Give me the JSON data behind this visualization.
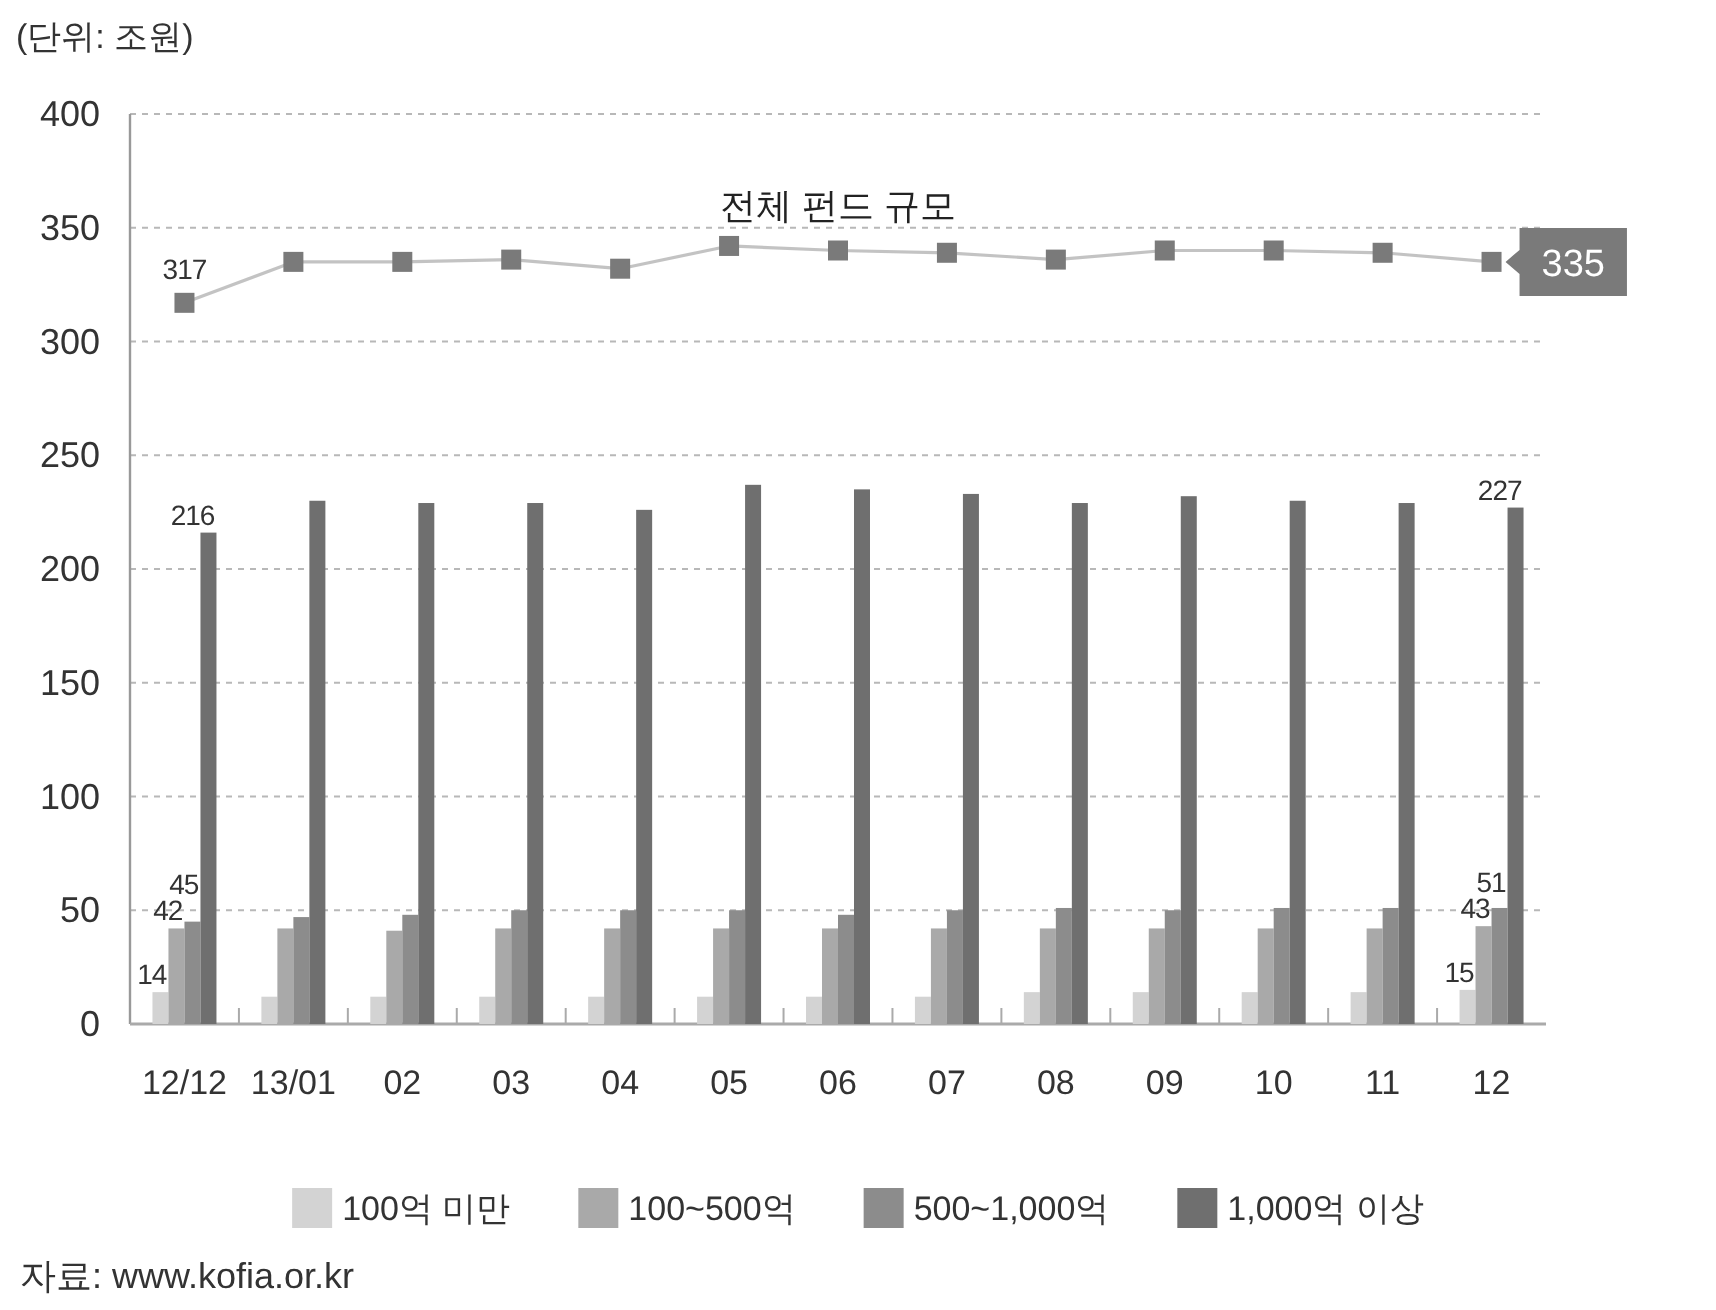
{
  "chart_data": {
    "type": "bar",
    "ylabel": "(단위: 조원)",
    "categories": [
      "12/12",
      "13/01",
      "02",
      "03",
      "04",
      "05",
      "06",
      "07",
      "08",
      "09",
      "10",
      "11",
      "12"
    ],
    "series": [
      {
        "name": "100억 미만",
        "color": "#d3d3d3",
        "values": [
          14,
          12,
          12,
          12,
          12,
          12,
          12,
          12,
          14,
          14,
          14,
          14,
          15
        ],
        "value_labels": [
          "14",
          null,
          null,
          null,
          null,
          null,
          null,
          null,
          null,
          null,
          null,
          null,
          "15"
        ]
      },
      {
        "name": "100~500억",
        "color": "#a9a9a9",
        "values": [
          42,
          42,
          41,
          42,
          42,
          42,
          42,
          42,
          42,
          42,
          42,
          42,
          43
        ],
        "value_labels": [
          "42",
          null,
          null,
          null,
          null,
          null,
          null,
          null,
          null,
          null,
          null,
          null,
          "43"
        ]
      },
      {
        "name": "500~1,000억",
        "color": "#8c8c8c",
        "values": [
          45,
          47,
          48,
          50,
          50,
          50,
          48,
          50,
          51,
          50,
          51,
          51,
          51
        ],
        "value_labels": [
          "45",
          null,
          null,
          null,
          null,
          null,
          null,
          null,
          null,
          null,
          null,
          null,
          "51"
        ]
      },
      {
        "name": "1,000억 이상",
        "color": "#6f6f6f",
        "values": [
          216,
          230,
          229,
          229,
          226,
          237,
          235,
          233,
          229,
          232,
          230,
          229,
          227
        ],
        "value_labels": [
          "216",
          null,
          null,
          null,
          null,
          null,
          null,
          null,
          null,
          null,
          null,
          null,
          "227"
        ]
      },
      {
        "name": "전체 펀드 규모",
        "type": "line",
        "color": "#7a7a7a",
        "values": [
          317,
          335,
          335,
          336,
          332,
          342,
          340,
          339,
          336,
          340,
          340,
          339,
          335
        ],
        "value_labels": [
          "317",
          null,
          null,
          null,
          null,
          null,
          null,
          null,
          null,
          null,
          null,
          null,
          "335"
        ]
      }
    ],
    "ylim": [
      0,
      400
    ],
    "yticks": [
      0,
      50,
      100,
      150,
      200,
      250,
      300,
      350,
      400
    ],
    "grid": "y",
    "legend": "bottom",
    "marker": "square",
    "annotations": [
      "자료: www.kofia.or.kr"
    ]
  }
}
